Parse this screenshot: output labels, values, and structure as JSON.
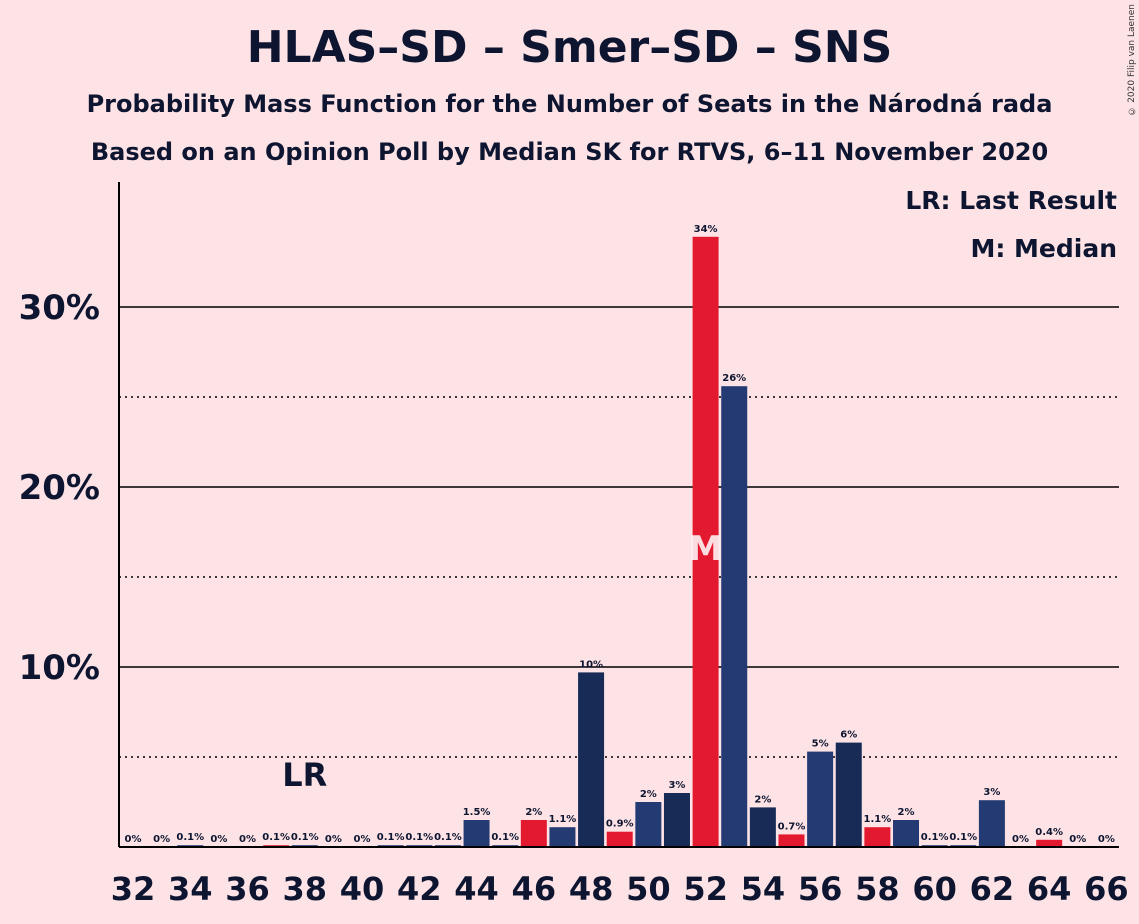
{
  "chart_data": {
    "type": "bar",
    "title": "HLAS–SD – Smer–SD – SNS",
    "subtitle": "Probability Mass Function for the Number of Seats in the Národná rada",
    "subtitle2": "Based on an Opinion Poll by Median SK for RTVS, 6–11 November 2020",
    "legend": {
      "lr": "LR: Last Result",
      "m": "M: Median",
      "placement": "top-right"
    },
    "copyright": "© 2020 Filip van Laenen",
    "ylim": [
      0,
      37
    ],
    "y_major_ticks": [
      10,
      20,
      30
    ],
    "y_minor_ticks": [
      5,
      15,
      25
    ],
    "y_tick_labels": [
      "10%",
      "20%",
      "30%"
    ],
    "x_tick_labels": [
      "32",
      "34",
      "36",
      "38",
      "40",
      "42",
      "44",
      "46",
      "48",
      "50",
      "52",
      "54",
      "56",
      "58",
      "60",
      "62",
      "64",
      "66"
    ],
    "seats": [
      32,
      33,
      34,
      35,
      36,
      37,
      38,
      39,
      40,
      41,
      42,
      43,
      44,
      45,
      46,
      47,
      48,
      49,
      50,
      51,
      52,
      53,
      54,
      55,
      56,
      57,
      58,
      59,
      60,
      61,
      62,
      63,
      64,
      65,
      66
    ],
    "values": [
      0,
      0,
      0.1,
      0,
      0,
      0.1,
      0.1,
      0,
      0,
      0.1,
      0.1,
      0.1,
      1.5,
      0.1,
      1.5,
      1.1,
      9.7,
      0.85,
      2.5,
      3,
      33.9,
      25.6,
      2.2,
      0.7,
      5.3,
      5.8,
      1.1,
      1.5,
      0.1,
      0.1,
      2.6,
      0,
      0.4,
      0,
      0
    ],
    "labels": [
      "0%",
      "0%",
      "0.1%",
      "0%",
      "0%",
      "0.1%",
      "0.1%",
      "0%",
      "0%",
      "0.1%",
      "0.1%",
      "0.1%",
      "1.5%",
      "0.1%",
      "2%",
      "1.1%",
      "10%",
      "0.9%",
      "2%",
      "3%",
      "34%",
      "26%",
      "2%",
      "0.7%",
      "5%",
      "6%",
      "1.1%",
      "2%",
      "0.1%",
      "0.1%",
      "3%",
      "0%",
      "0.4%",
      "0%",
      "0%"
    ],
    "bar_colors": [
      "#243a73",
      "#243a73",
      "#243a73",
      "#243a73",
      "#243a73",
      "#e3192f",
      "#243a73",
      "#243a73",
      "#243a73",
      "#243a73",
      "#243a73",
      "#243a73",
      "#243a73",
      "#243a73",
      "#e3192f",
      "#243a73",
      "#172b56",
      "#e3192f",
      "#243a73",
      "#172b56",
      "#e3192f",
      "#243a73",
      "#172b56",
      "#e3192f",
      "#243a73",
      "#172b56",
      "#e3192f",
      "#243a73",
      "#243a73",
      "#243a73",
      "#243a73",
      "#243a73",
      "#e3192f",
      "#243a73",
      "#243a73"
    ],
    "last_result_seat": 38,
    "last_result_marker": "LR",
    "median_seat": 52,
    "median_marker": "M"
  }
}
